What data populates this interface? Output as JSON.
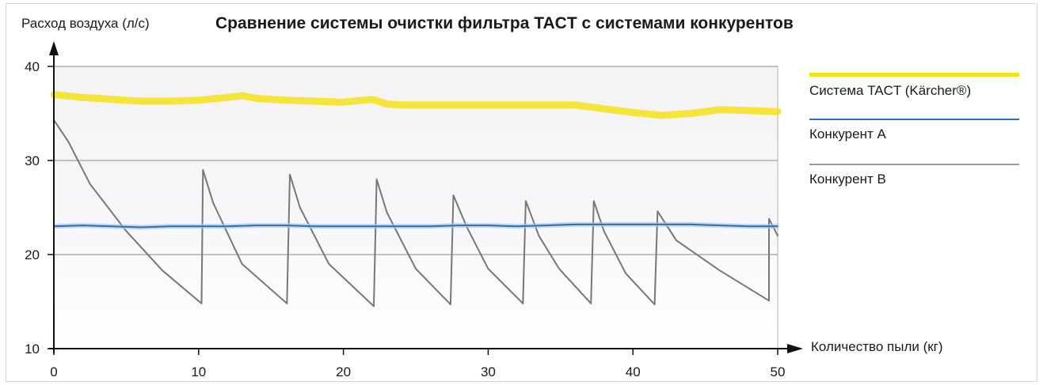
{
  "chart_data": {
    "type": "line",
    "title": "Сравнение системы очистки фильтра TACT с системами конкурентов",
    "ylabel": "Расход воздуха (л/с)",
    "xlabel": "Количество пыли (кг)",
    "xlim": [
      0,
      50
    ],
    "ylim": [
      10,
      40
    ],
    "x_ticks": [
      0,
      10,
      20,
      30,
      40,
      50
    ],
    "y_ticks": [
      10,
      20,
      30,
      40
    ],
    "grid": "horizontal",
    "legend_position": "right",
    "series": [
      {
        "name": "Система TACT (Kärcher®)",
        "color": "#f5e11a",
        "x": [
          0,
          2,
          4,
          6,
          8,
          10,
          12,
          13,
          14,
          16,
          18,
          20,
          22,
          23,
          24,
          26,
          28,
          30,
          32,
          34,
          36,
          38,
          40,
          42,
          44,
          46,
          48,
          50
        ],
        "y": [
          37.0,
          36.7,
          36.5,
          36.3,
          36.3,
          36.4,
          36.7,
          36.9,
          36.6,
          36.4,
          36.3,
          36.2,
          36.5,
          36.0,
          35.9,
          35.9,
          35.9,
          35.9,
          35.9,
          35.9,
          35.9,
          35.5,
          35.1,
          34.8,
          35.0,
          35.4,
          35.3,
          35.2
        ]
      },
      {
        "name": "Конкурент A",
        "color": "#2e6fb0",
        "x": [
          0,
          2,
          4,
          6,
          8,
          10,
          12,
          14,
          16,
          18,
          20,
          22,
          24,
          26,
          28,
          30,
          32,
          34,
          36,
          38,
          40,
          42,
          44,
          46,
          48,
          50
        ],
        "y": [
          23.0,
          23.1,
          23.0,
          22.9,
          23.0,
          23.0,
          23.0,
          23.1,
          23.1,
          23.0,
          23.0,
          23.0,
          23.0,
          23.0,
          23.1,
          23.1,
          23.0,
          23.1,
          23.2,
          23.2,
          23.2,
          23.2,
          23.2,
          23.1,
          23.0,
          23.0
        ]
      },
      {
        "name": "Конкурент B",
        "color": "#777777",
        "x": [
          0,
          1,
          2.5,
          5,
          7.5,
          10.2,
          10.2,
          10.3,
          11,
          13,
          16.1,
          16.1,
          16.3,
          17,
          19,
          22.1,
          22.1,
          22.3,
          23,
          25,
          27.4,
          27.4,
          27.6,
          28.5,
          30,
          32.4,
          32.4,
          32.6,
          33.5,
          34.9,
          37.1,
          37.1,
          37.3,
          38,
          39.5,
          41.5,
          41.5,
          41.7,
          43,
          46,
          49.4,
          49.4,
          50
        ],
        "y": [
          34.3,
          32,
          27.5,
          22.5,
          18.3,
          14.8,
          14.8,
          29.0,
          25.5,
          19.0,
          14.8,
          14.8,
          28.5,
          25.0,
          19.0,
          14.5,
          14.5,
          28.0,
          24.5,
          18.5,
          14.7,
          14.7,
          26.3,
          23.0,
          18.5,
          14.8,
          14.8,
          25.7,
          22.0,
          18.5,
          14.8,
          14.8,
          25.7,
          22.5,
          18.0,
          14.7,
          14.7,
          24.6,
          21.5,
          18.3,
          15.1,
          23.8,
          22.0
        ]
      }
    ]
  }
}
